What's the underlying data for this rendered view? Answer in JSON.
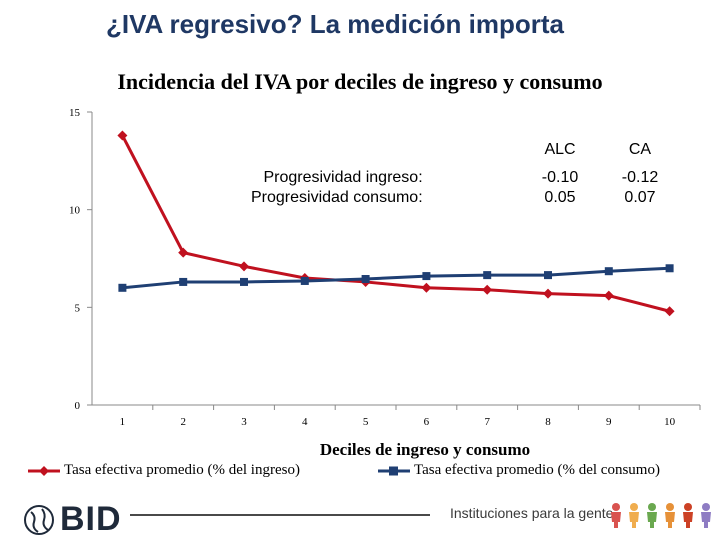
{
  "slide": {
    "title": "¿IVA regresivo? La medición importa"
  },
  "annotations": {
    "row_labels": [
      "Progresividad ingreso:",
      "Progresividad consumo:"
    ],
    "columns": [
      {
        "header": "ALC",
        "values": [
          "-0.10",
          "0.05"
        ]
      },
      {
        "header": "CA",
        "values": [
          "-0.12",
          "0.07"
        ]
      }
    ]
  },
  "footer": {
    "logo_text": "BID",
    "tagline": "Instituciones para la gente",
    "people_colors": [
      "#d9534f",
      "#f0ad4e",
      "#6aa84f",
      "#e69138",
      "#cc4125",
      "#8e7cc3"
    ]
  },
  "chart_data": {
    "type": "line",
    "title": "Incidencia del IVA por deciles de ingreso y consumo",
    "xlabel": "Deciles de ingreso y consumo",
    "ylabel": "",
    "x": [
      1,
      2,
      3,
      4,
      5,
      6,
      7,
      8,
      9,
      10
    ],
    "x_tick_labels": [
      "1",
      "2",
      "3",
      "4",
      "5",
      "6",
      "7",
      "8",
      "9",
      "10"
    ],
    "y_ticks": [
      0,
      5,
      10,
      15
    ],
    "y_tick_labels": [
      "0",
      "5",
      "10",
      "15"
    ],
    "ylim": [
      0,
      15
    ],
    "grid": false,
    "legend_position": "bottom",
    "series": [
      {
        "name": "Tasa efectiva promedio (% del ingreso)",
        "color": "#c0111f",
        "marker": "diamond",
        "values": [
          13.8,
          7.8,
          7.1,
          6.5,
          6.3,
          6.0,
          5.9,
          5.7,
          5.6,
          4.8
        ]
      },
      {
        "name": "Tasa efectiva promedio (% del consumo)",
        "color": "#1f3f73",
        "marker": "square",
        "values": [
          6.0,
          6.3,
          6.3,
          6.35,
          6.45,
          6.6,
          6.65,
          6.65,
          6.85,
          7.0
        ]
      }
    ]
  }
}
